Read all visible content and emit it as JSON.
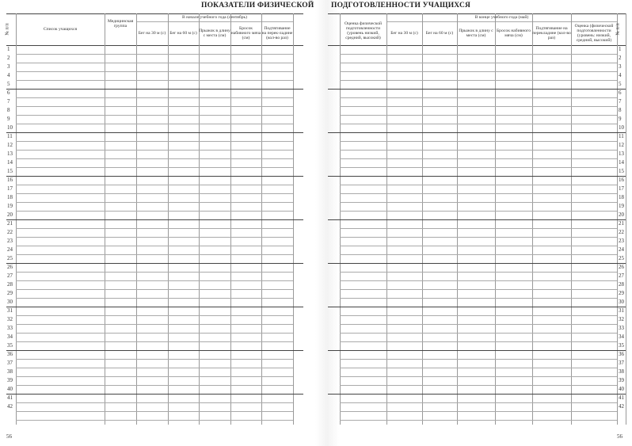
{
  "left_page": {
    "title": "ПОКАЗАТЕЛИ ФИЗИЧЕСКОЙ",
    "number_header": "№ п/п",
    "student_list_header": "Список учащихся",
    "medical_group_header": "Медицинская группа",
    "period_header": "В начале учебного года (сентябрь)",
    "columns": [
      "Бег на 30 м (с)",
      "Бег на 60 м (с)",
      "Прыжок в длину с места (см)",
      "Бросок набивного мяча (см)",
      "Подтягивание на перек-ладине (кол-во раз)"
    ],
    "page_number": "56"
  },
  "right_page": {
    "title": "ПОДГОТОВЛЕННОСТИ УЧАЩИХСЯ",
    "period_header": "В конце учебного года (май)",
    "first_column": "Оценка физической подготовленности (уровень низкий, средний, высокий)",
    "columns": [
      "Бег на 30 м (с)",
      "Бег на 60 м (с)",
      "Прыжок в длину с места (см)",
      "Бросок набивного мяча (см)",
      "Подтягивание на перекладине (кол-во раз)"
    ],
    "last_column": "Оценка (физической подготовленности (уровень: низкий, средний, высокий)",
    "number_header": "№ п/п",
    "page_number": "56"
  },
  "row_numbers": [
    "1",
    "2",
    "3",
    "4",
    "5",
    "6",
    "7",
    "8",
    "9",
    "10",
    "11",
    "12",
    "13",
    "14",
    "15",
    "16",
    "17",
    "18",
    "19",
    "20",
    "21",
    "22",
    "23",
    "24",
    "25",
    "26",
    "27",
    "28",
    "29",
    "30",
    "31",
    "32",
    "33",
    "34",
    "35",
    "36",
    "37",
    "38",
    "39",
    "40",
    "41",
    "42"
  ]
}
